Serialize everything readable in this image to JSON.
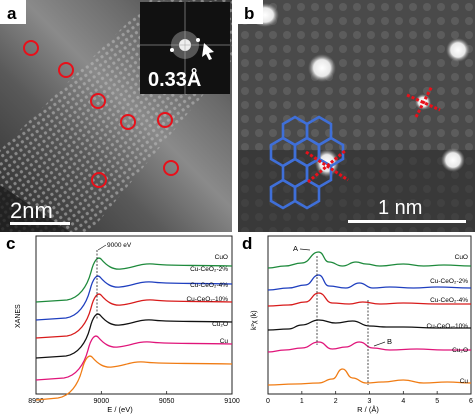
{
  "panels": {
    "a": {
      "label": "a",
      "scale_bar": "2nm",
      "inset_label": "0.33Å",
      "circle_count": 8
    },
    "b": {
      "label": "b",
      "scale_bar": "1 nm"
    },
    "c": {
      "label": "c",
      "annotation": "9000 eV",
      "ylabel": "XANES",
      "xlabel": "E / (eV)",
      "xticks": [
        "8950",
        "9000",
        "9050",
        "9100"
      ]
    },
    "d": {
      "label": "d",
      "annotation_a": "A",
      "annotation_b": "B",
      "ylabel": "k²χ (k)",
      "xlabel": "R / (Å)",
      "xticks": [
        "0",
        "1",
        "2",
        "3",
        "4",
        "5",
        "6"
      ]
    }
  },
  "chart_data": [
    {
      "type": "line",
      "panel": "c",
      "xlabel": "E / (eV)",
      "ylabel": "XANES",
      "xlim": [
        8950,
        9100
      ],
      "series": [
        {
          "name": "CuO",
          "color": "#1e8a3c"
        },
        {
          "name": "Cu-CeO₂-2%",
          "color": "#1f3fbf"
        },
        {
          "name": "Cu-CeO₂-4%",
          "color": "#d81b1b"
        },
        {
          "name": "Cu-CeO₂-10%",
          "color": "#111111"
        },
        {
          "name": "Cu₂O",
          "color": "#e0157a"
        },
        {
          "name": "Cu",
          "color": "#f07c14"
        }
      ]
    },
    {
      "type": "line",
      "panel": "d",
      "xlabel": "R / (Å)",
      "ylabel": "k²χ (k)",
      "xlim": [
        0,
        6
      ],
      "series": [
        {
          "name": "CuO",
          "color": "#1e8a3c"
        },
        {
          "name": "Cu-CeO₂-2%",
          "color": "#1f3fbf"
        },
        {
          "name": "Cu-CeO₂-4%",
          "color": "#d81b1b"
        },
        {
          "name": "Cu-CeO₂-10%",
          "color": "#111111"
        },
        {
          "name": "Cu₂O",
          "color": "#e0157a"
        },
        {
          "name": "Cu",
          "color": "#f07c14"
        }
      ]
    }
  ]
}
